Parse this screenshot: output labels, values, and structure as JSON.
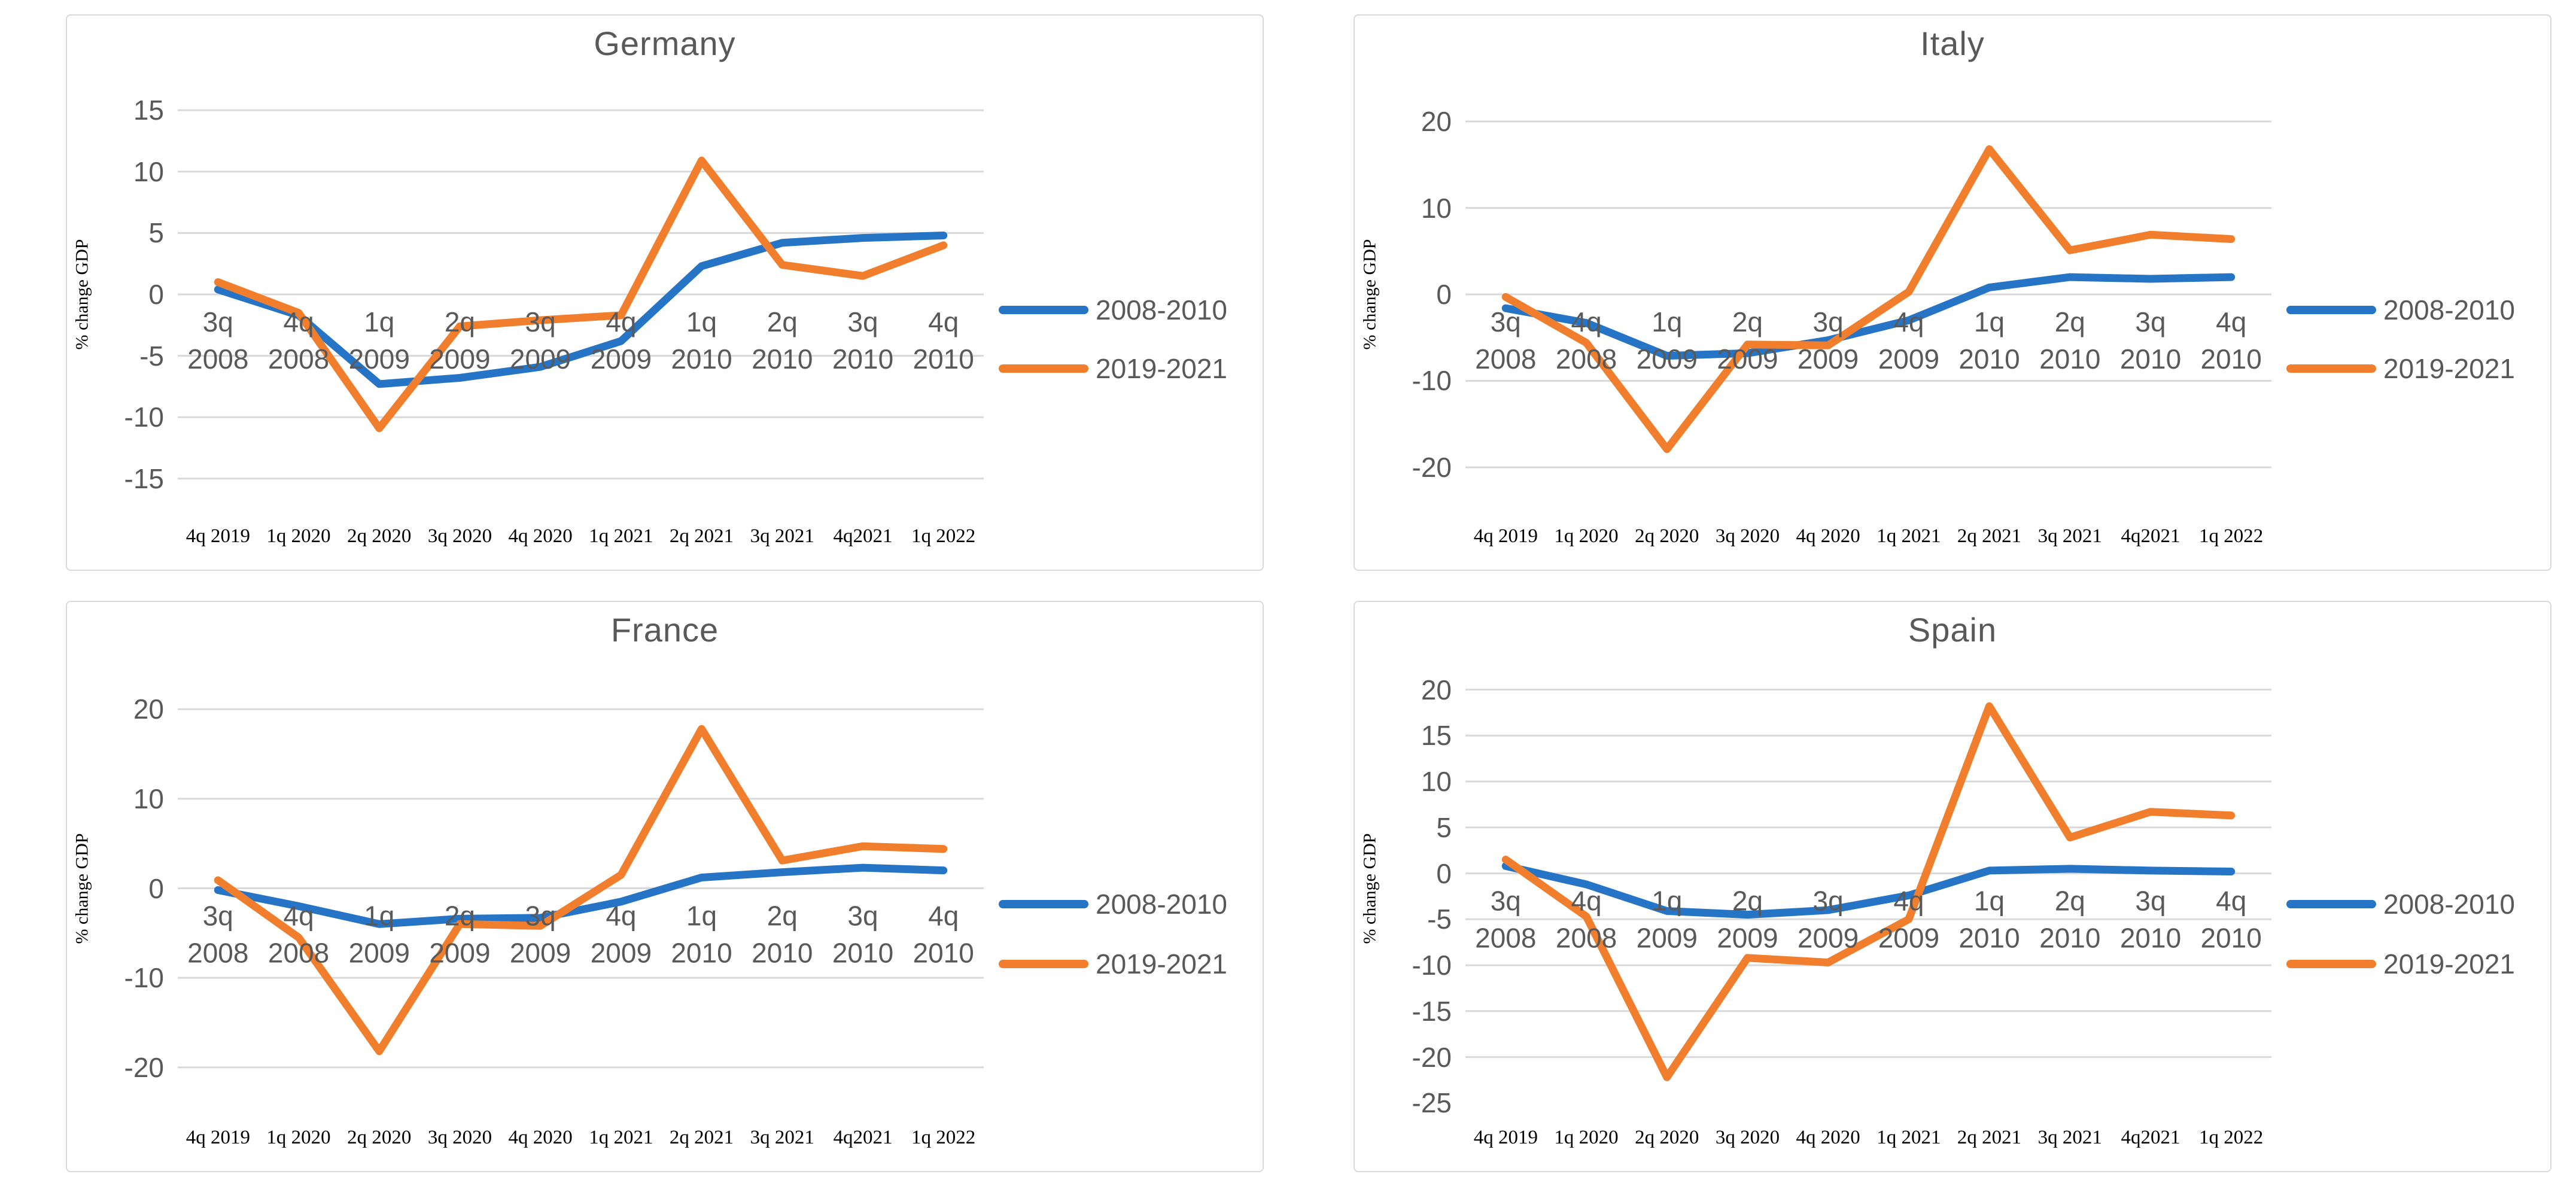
{
  "page": {
    "background": "#ffffff"
  },
  "colors": {
    "series_2008_2010": "#2674c6",
    "series_2019_2021": "#f07e2c",
    "gridline": "#d9d9d9",
    "panel_border": "#d9d9d9",
    "axis_text": "#595959",
    "title_text": "#595959",
    "secondary_label_text": "#000000"
  },
  "chart_data": [
    {
      "type": "line",
      "title": "Germany",
      "y_axis_title": "% change GDP",
      "legend_position": "right",
      "grid": true,
      "y_ticks": [
        15,
        10,
        5,
        0,
        -5,
        -10,
        -15
      ],
      "y_gridlines": [
        15,
        10,
        5,
        0,
        -5,
        -10,
        -15
      ],
      "ylim": [
        -17.25,
        17.25
      ],
      "categories": [
        [
          "3q",
          "2008"
        ],
        [
          "4q",
          "2008"
        ],
        [
          "1q",
          "2009"
        ],
        [
          "2q",
          "2009"
        ],
        [
          "3q",
          "2009"
        ],
        [
          "4q",
          "2009"
        ],
        [
          "1q",
          "2010"
        ],
        [
          "2q",
          "2010"
        ],
        [
          "3q",
          "2010"
        ],
        [
          "4q",
          "2010"
        ]
      ],
      "secondary_categories": [
        "4q 2019",
        "1q 2020",
        "2q 2020",
        "3q 2020",
        "4q 2020",
        "1q 2021",
        "2q 2021",
        "3q 2021",
        "4q2021",
        "1q 2022"
      ],
      "series": [
        {
          "name": "2008-2010",
          "color": "#2674c6",
          "values": [
            0.4,
            -1.7,
            -7.3,
            -6.8,
            -5.9,
            -3.8,
            2.3,
            4.2,
            4.6,
            4.8
          ]
        },
        {
          "name": "2019-2021",
          "color": "#f07e2c",
          "values": [
            1.0,
            -1.5,
            -10.9,
            -2.6,
            -2.1,
            -1.7,
            10.9,
            2.4,
            1.5,
            4.0
          ]
        }
      ]
    },
    {
      "type": "line",
      "title": "Italy",
      "y_axis_title": "% change GDP",
      "legend_position": "right",
      "grid": true,
      "y_ticks": [
        20,
        10,
        0,
        -10,
        -20
      ],
      "y_gridlines": [
        20,
        10,
        0,
        -10,
        -20
      ],
      "ylim": [
        -24.5,
        24.5
      ],
      "categories": [
        [
          "3q",
          "2008"
        ],
        [
          "4q",
          "2008"
        ],
        [
          "1q",
          "2009"
        ],
        [
          "2q",
          "2009"
        ],
        [
          "3q",
          "2009"
        ],
        [
          "4q",
          "2009"
        ],
        [
          "1q",
          "2010"
        ],
        [
          "2q",
          "2010"
        ],
        [
          "3q",
          "2010"
        ],
        [
          "4q",
          "2010"
        ]
      ],
      "secondary_categories": [
        "4q 2019",
        "1q 2020",
        "2q 2020",
        "3q 2020",
        "4q 2020",
        "1q 2021",
        "2q 2021",
        "3q 2021",
        "4q2021",
        "1q 2022"
      ],
      "series": [
        {
          "name": "2008-2010",
          "color": "#2674c6",
          "values": [
            -1.6,
            -3.3,
            -7.1,
            -6.8,
            -5.3,
            -3.0,
            0.8,
            2.0,
            1.8,
            2.0
          ]
        },
        {
          "name": "2019-2021",
          "color": "#f07e2c",
          "values": [
            -0.3,
            -5.6,
            -17.9,
            -5.8,
            -5.9,
            0.3,
            16.8,
            5.1,
            6.9,
            6.4
          ]
        }
      ]
    },
    {
      "type": "line",
      "title": "France",
      "y_axis_title": "% change GDP",
      "legend_position": "right",
      "grid": true,
      "y_ticks": [
        20,
        10,
        0,
        -10,
        -20
      ],
      "y_gridlines": [
        20,
        10,
        0,
        -10,
        -20
      ],
      "ylim": [
        -24.5,
        24.5
      ],
      "categories": [
        [
          "3q",
          "2008"
        ],
        [
          "4q",
          "2008"
        ],
        [
          "1q",
          "2009"
        ],
        [
          "2q",
          "2009"
        ],
        [
          "3q",
          "2009"
        ],
        [
          "4q",
          "2009"
        ],
        [
          "1q",
          "2010"
        ],
        [
          "2q",
          "2010"
        ],
        [
          "3q",
          "2010"
        ],
        [
          "4q",
          "2010"
        ]
      ],
      "secondary_categories": [
        "4q 2019",
        "1q 2020",
        "2q 2020",
        "3q 2020",
        "4q 2020",
        "1q 2021",
        "2q 2021",
        "3q 2021",
        "4q2021",
        "1q 2022"
      ],
      "series": [
        {
          "name": "2008-2010",
          "color": "#2674c6",
          "values": [
            -0.2,
            -2.0,
            -4.0,
            -3.4,
            -3.3,
            -1.5,
            1.2,
            1.8,
            2.3,
            2.0
          ]
        },
        {
          "name": "2019-2021",
          "color": "#f07e2c",
          "values": [
            0.9,
            -5.5,
            -18.2,
            -4.0,
            -4.2,
            1.5,
            17.8,
            3.1,
            4.7,
            4.4
          ]
        }
      ]
    },
    {
      "type": "line",
      "title": "Spain",
      "y_axis_title": "% change GDP",
      "legend_position": "right",
      "grid": true,
      "y_ticks": [
        20,
        15,
        10,
        5,
        0,
        -5,
        -10,
        -15,
        -20,
        -25
      ],
      "y_gridlines": [
        20,
        15,
        10,
        5,
        0,
        -5,
        -10,
        -15,
        -20
      ],
      "ylim": [
        -25.5,
        22.25
      ],
      "categories": [
        [
          "3q",
          "2008"
        ],
        [
          "4q",
          "2008"
        ],
        [
          "1q",
          "2009"
        ],
        [
          "2q",
          "2009"
        ],
        [
          "3q",
          "2009"
        ],
        [
          "4q",
          "2009"
        ],
        [
          "1q",
          "2010"
        ],
        [
          "2q",
          "2010"
        ],
        [
          "3q",
          "2010"
        ],
        [
          "4q",
          "2010"
        ]
      ],
      "secondary_categories": [
        "4q 2019",
        "1q 2020",
        "2q 2020",
        "3q 2020",
        "4q 2020",
        "1q 2021",
        "2q 2021",
        "3q 2021",
        "4q2021",
        "1q 2022"
      ],
      "series": [
        {
          "name": "2008-2010",
          "color": "#2674c6",
          "values": [
            0.8,
            -1.2,
            -4.1,
            -4.5,
            -4.0,
            -2.4,
            0.3,
            0.5,
            0.3,
            0.2
          ]
        },
        {
          "name": "2019-2021",
          "color": "#f07e2c",
          "values": [
            1.5,
            -4.7,
            -22.2,
            -9.2,
            -9.7,
            -5.0,
            18.2,
            3.9,
            6.7,
            6.3
          ]
        }
      ]
    }
  ]
}
